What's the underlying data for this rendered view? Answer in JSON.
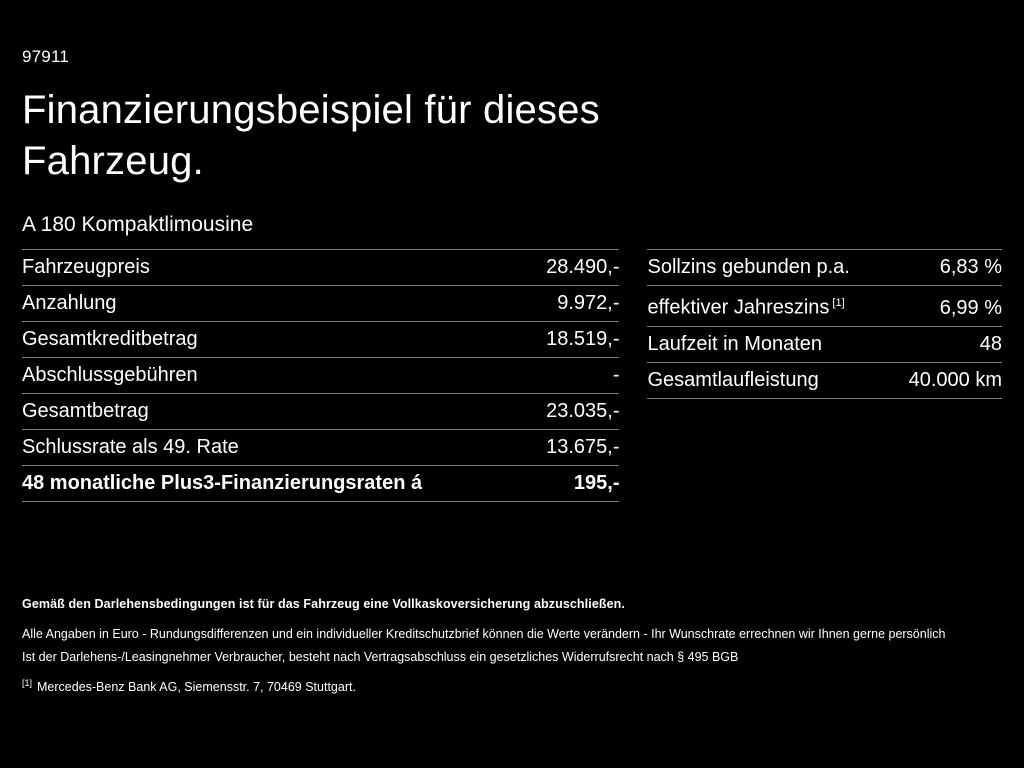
{
  "page": {
    "doc_number": "97911",
    "title": "Finanzierungsbeispiel für dieses Fahrzeug.",
    "subtitle": "A 180 Kompaktlimousine"
  },
  "left_table": {
    "rows": [
      {
        "label": "Fahrzeugpreis",
        "value": "28.490,-"
      },
      {
        "label": "Anzahlung",
        "value": "9.972,-"
      },
      {
        "label": "Gesamtkreditbetrag",
        "value": "18.519,-"
      },
      {
        "label": "Abschlussgebühren",
        "value": "-"
      },
      {
        "label": "Gesamtbetrag",
        "value": "23.035,-"
      },
      {
        "label": "Schlussrate als 49. Rate",
        "value": "13.675,-"
      },
      {
        "label": "48 monatliche Plus3-Finanzierungsraten á",
        "value": "195,-"
      }
    ]
  },
  "right_table": {
    "rows": [
      {
        "label": "Sollzins gebunden p.a.",
        "value": "6,83 %"
      },
      {
        "label": "effektiver Jahreszins",
        "sup": "[1]",
        "value": "6,99 %"
      },
      {
        "label": "Laufzeit in Monaten",
        "value": "48"
      },
      {
        "label": "Gesamtlaufleistung",
        "value": "40.000 km"
      }
    ]
  },
  "footer": {
    "insurance_note": "Gemäß den Darlehensbedingungen ist für das Fahrzeug eine Vollkaskoversicherung abzuschließen.",
    "disclaimer_line1": "Alle Angaben in Euro - Rundungsdifferenzen und ein individueller Kreditschutzbrief können die Werte verändern - Ihr Wunschrate errechnen wir Ihnen gerne persönlich",
    "disclaimer_line2": "Ist der Darlehens-/Leasingnehmer Verbraucher, besteht nach Vertragsabschluss ein gesetzliches Widerrufsrecht nach § 495 BGB",
    "footnote_marker": "[1]",
    "footnote_text": "Mercedes-Benz Bank AG, Siemensstr. 7, 70469 Stuttgart."
  },
  "colors": {
    "background": "#000000",
    "text": "#ffffff",
    "divider": "#7d7d7d"
  }
}
